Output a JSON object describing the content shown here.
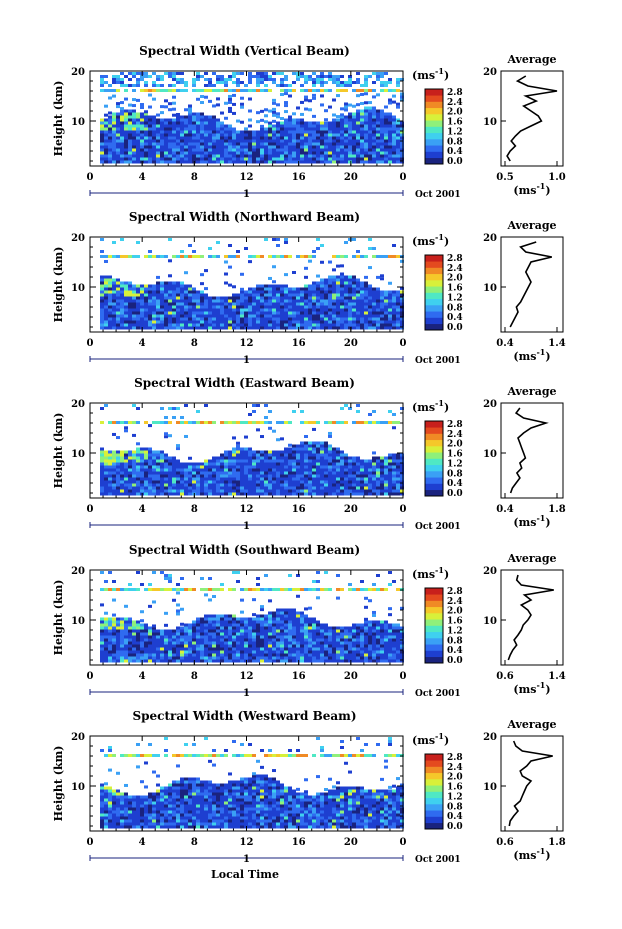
{
  "page": {
    "xlabel": "Local Time"
  },
  "chart_data": [
    {
      "type": "heatmap",
      "title": "Spectral Width (Vertical Beam)",
      "ylabel": "Height (km)",
      "xticks": [
        "0",
        "4",
        "8",
        "12",
        "16",
        "20",
        "0"
      ],
      "yticks": [
        "20",
        "10"
      ],
      "day_label": "1",
      "date_label": "Oct 2001",
      "xlim": [
        0,
        24
      ],
      "ylim": [
        1,
        20
      ],
      "colorbar": {
        "unit": "(ms",
        "unit_exp": "-1",
        "unit_close": ")",
        "ticks": [
          "2.8",
          "2.4",
          "2.0",
          "1.6",
          "1.2",
          "0.8",
          "0.4",
          "0.0"
        ]
      },
      "profile": {
        "title": "Average",
        "yticks": [
          "20",
          "10"
        ],
        "xticks": [
          "0.5",
          "1.0"
        ],
        "xlim": [
          0.5,
          1.0
        ],
        "xlabel": "(ms",
        "xlabel_exp": "-1",
        "xlabel_close": ")",
        "height": [
          2,
          3,
          4,
          5,
          6,
          7,
          8,
          9,
          10,
          11,
          12,
          13,
          14,
          15,
          16,
          17,
          18,
          19
        ],
        "width": [
          0.55,
          0.52,
          0.55,
          0.6,
          0.56,
          0.6,
          0.65,
          0.75,
          0.85,
          0.82,
          0.75,
          0.68,
          0.8,
          0.7,
          1.0,
          0.72,
          0.62,
          0.7
        ]
      }
    },
    {
      "type": "heatmap",
      "title": "Spectral Width (Northward Beam)",
      "ylabel": "Height (km)",
      "xticks": [
        "0",
        "4",
        "8",
        "12",
        "16",
        "20",
        "0"
      ],
      "yticks": [
        "20",
        "10"
      ],
      "day_label": "1",
      "date_label": "Oct 2001",
      "xlim": [
        0,
        24
      ],
      "ylim": [
        1,
        20
      ],
      "colorbar": {
        "unit": "(ms",
        "unit_exp": "-1",
        "unit_close": ")",
        "ticks": [
          "2.8",
          "2.4",
          "2.0",
          "1.6",
          "1.2",
          "0.8",
          "0.4",
          "0.0"
        ]
      },
      "profile": {
        "title": "Average",
        "yticks": [
          "20",
          "10"
        ],
        "xticks": [
          "0.4",
          "1.4"
        ],
        "xlim": [
          0.4,
          1.4
        ],
        "xlabel": "(ms",
        "xlabel_exp": "-1",
        "xlabel_close": ")",
        "height": [
          2,
          3,
          4,
          5,
          6,
          7,
          8,
          9,
          10,
          11,
          12,
          13,
          14,
          15,
          16,
          17,
          18,
          19
        ],
        "width": [
          0.5,
          0.55,
          0.6,
          0.65,
          0.62,
          0.7,
          0.75,
          0.8,
          0.85,
          0.9,
          0.85,
          0.8,
          0.85,
          0.9,
          1.3,
          0.8,
          0.7,
          1.0
        ]
      }
    },
    {
      "type": "heatmap",
      "title": "Spectral Width (Eastward Beam)",
      "ylabel": "Height (km)",
      "xticks": [
        "0",
        "4",
        "8",
        "12",
        "16",
        "20",
        "0"
      ],
      "yticks": [
        "20",
        "10"
      ],
      "day_label": "1",
      "date_label": "Oct 2001",
      "xlim": [
        0,
        24
      ],
      "ylim": [
        1,
        20
      ],
      "colorbar": {
        "unit": "(ms",
        "unit_exp": "-1",
        "unit_close": ")",
        "ticks": [
          "2.8",
          "2.4",
          "2.0",
          "1.6",
          "1.2",
          "0.8",
          "0.4",
          "0.0"
        ]
      },
      "profile": {
        "title": "Average",
        "yticks": [
          "20",
          "10"
        ],
        "xticks": [
          "0.4",
          "1.8"
        ],
        "xlim": [
          0.4,
          1.8
        ],
        "xlabel": "(ms",
        "xlabel_exp": "-1",
        "xlabel_close": ")",
        "height": [
          2,
          3,
          4,
          5,
          6,
          7,
          8,
          9,
          10,
          11,
          12,
          13,
          14,
          15,
          16,
          17,
          18,
          19
        ],
        "width": [
          0.55,
          0.6,
          0.7,
          0.8,
          0.72,
          0.85,
          0.8,
          0.95,
          0.9,
          0.85,
          0.8,
          0.75,
          0.9,
          1.1,
          1.5,
          0.9,
          0.7,
          0.8
        ]
      }
    },
    {
      "type": "heatmap",
      "title": "Spectral Width (Southward Beam)",
      "ylabel": "Height (km)",
      "xticks": [
        "0",
        "4",
        "8",
        "12",
        "16",
        "20",
        "0"
      ],
      "yticks": [
        "20",
        "10"
      ],
      "day_label": "1",
      "date_label": "Oct 2001",
      "xlim": [
        0,
        24
      ],
      "ylim": [
        1,
        20
      ],
      "colorbar": {
        "unit": "(ms",
        "unit_exp": "-1",
        "unit_close": ")",
        "ticks": [
          "2.8",
          "2.4",
          "2.0",
          "1.6",
          "1.2",
          "0.8",
          "0.4",
          "0.0"
        ]
      },
      "profile": {
        "title": "Average",
        "yticks": [
          "20",
          "10"
        ],
        "xticks": [
          "0.6",
          "1.4"
        ],
        "xlim": [
          0.6,
          1.4
        ],
        "xlabel": "(ms",
        "xlabel_exp": "-1",
        "xlabel_close": ")",
        "height": [
          2,
          3,
          4,
          5,
          6,
          7,
          8,
          9,
          10,
          11,
          12,
          13,
          14,
          15,
          16,
          17,
          18,
          19
        ],
        "width": [
          0.65,
          0.68,
          0.72,
          0.78,
          0.74,
          0.8,
          0.85,
          0.88,
          0.95,
          1.0,
          0.95,
          0.85,
          1.0,
          0.9,
          1.35,
          0.85,
          0.78,
          0.8
        ]
      }
    },
    {
      "type": "heatmap",
      "title": "Spectral Width (Westward Beam)",
      "ylabel": "Height (km)",
      "xticks": [
        "0",
        "4",
        "8",
        "12",
        "16",
        "20",
        "0"
      ],
      "yticks": [
        "20",
        "10"
      ],
      "day_label": "1",
      "date_label": "Oct 2001",
      "xlim": [
        0,
        24
      ],
      "ylim": [
        1,
        20
      ],
      "colorbar": {
        "unit": "(ms",
        "unit_exp": "-1",
        "unit_close": ")",
        "ticks": [
          "2.8",
          "2.4",
          "2.0",
          "1.6",
          "1.2",
          "0.8",
          "0.4",
          "0.0"
        ]
      },
      "profile": {
        "title": "Average",
        "yticks": [
          "20",
          "10"
        ],
        "xticks": [
          "0.6",
          "1.8"
        ],
        "xlim": [
          0.6,
          1.8
        ],
        "xlabel": "(ms",
        "xlabel_exp": "-1",
        "xlabel_close": ")",
        "height": [
          2,
          3,
          4,
          5,
          6,
          7,
          8,
          9,
          10,
          11,
          12,
          13,
          14,
          15,
          16,
          17,
          18,
          19
        ],
        "width": [
          0.7,
          0.72,
          0.8,
          0.9,
          0.82,
          0.95,
          1.0,
          1.05,
          1.1,
          1.2,
          1.0,
          0.95,
          1.1,
          1.2,
          1.7,
          1.0,
          0.85,
          0.8
        ]
      }
    }
  ],
  "colors": [
    "#1a237e",
    "#1e3fd0",
    "#2f6bf0",
    "#3aa0f5",
    "#3fd0ef",
    "#4fe8c4",
    "#8ff07a",
    "#d8f03a",
    "#f5c82a",
    "#f08a25",
    "#e44a1f",
    "#c8201c"
  ]
}
